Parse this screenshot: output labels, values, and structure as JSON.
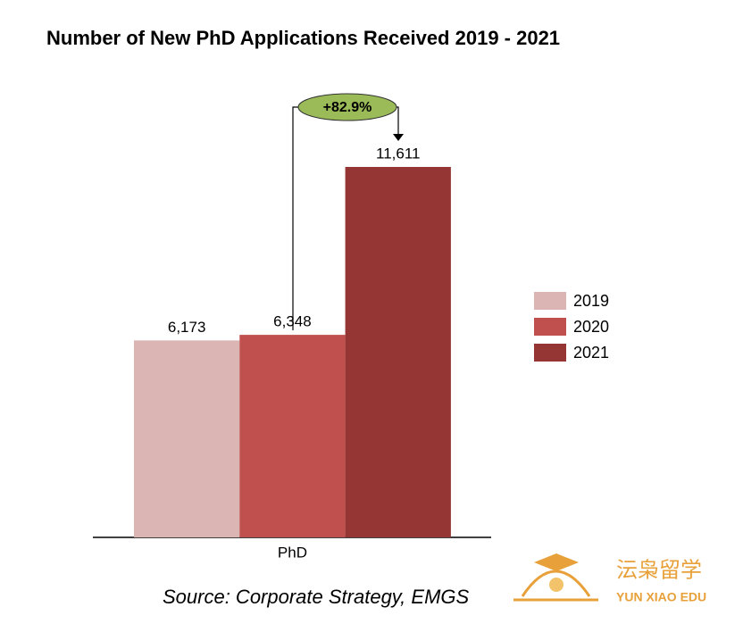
{
  "chart_data": {
    "type": "bar",
    "title": "Number of New PhD Applications Received 2019 - 2021",
    "categories": [
      "PhD"
    ],
    "series": [
      {
        "name": "2019",
        "color": "#dbb4b4",
        "values": [
          6173
        ],
        "value_labels": [
          "6,173"
        ]
      },
      {
        "name": "2020",
        "color": "#c0504d",
        "values": [
          6348
        ],
        "value_labels": [
          "6,348"
        ]
      },
      {
        "name": "2021",
        "color": "#963634",
        "values": [
          11611
        ],
        "value_labels": [
          "11,611"
        ]
      }
    ],
    "annotation": "+82.9%",
    "legend": "right",
    "source": "Source: Corporate Strategy, EMGS"
  },
  "watermark": {
    "name": "沄枭留学",
    "subtitle": "YUN XIAO EDU"
  }
}
